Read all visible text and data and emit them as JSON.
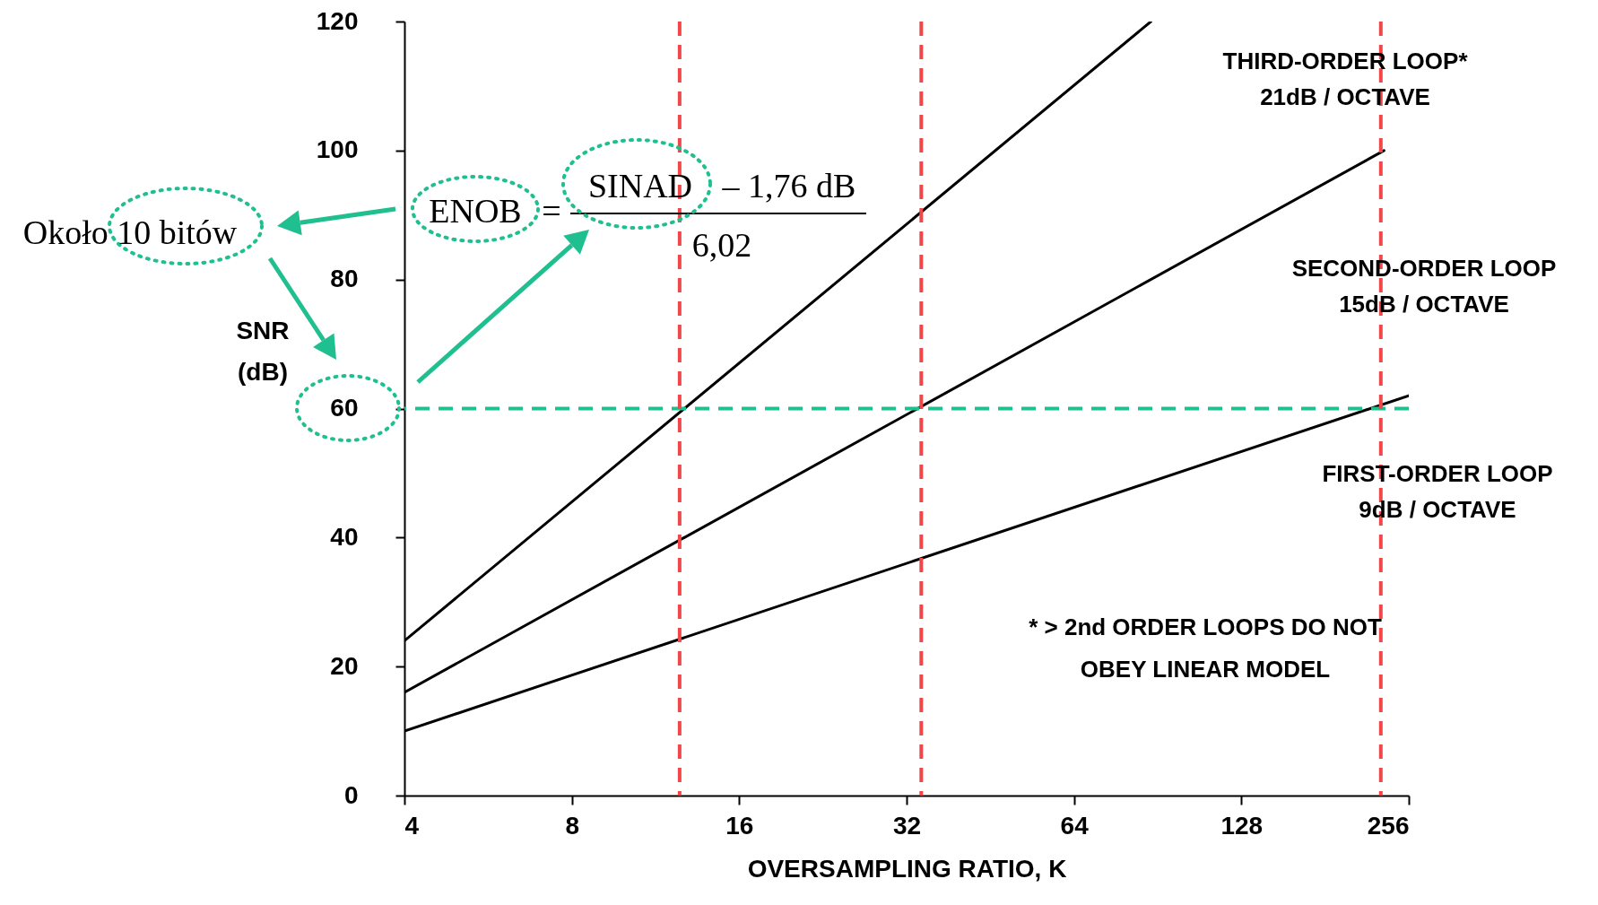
{
  "chart_data": {
    "type": "line",
    "xlabel": "OVERSAMPLING RATIO, K",
    "ylabel": "SNR (dB)",
    "log": "x",
    "xlim": [
      4,
      256
    ],
    "xticks": [
      4,
      8,
      16,
      32,
      64,
      128,
      256
    ],
    "ylim": [
      0,
      120
    ],
    "yticks": [
      0,
      20,
      40,
      60,
      80,
      100,
      120
    ],
    "grid": false,
    "line_style": "solid",
    "series": [
      {
        "color": "#000000",
        "x": [
          4,
          88
        ],
        "values": [
          24,
          120
        ]
      },
      {
        "color": "#000000",
        "x": [
          4,
          231
        ],
        "values": [
          16,
          100
        ]
      },
      {
        "color": "#000000",
        "x": [
          4,
          256
        ],
        "values": [
          10,
          62
        ]
      }
    ],
    "ref_lines": [
      {
        "axis": "y",
        "value": 60,
        "color": "#1fbf8f",
        "line_style": "dashed"
      },
      {
        "axis": "x",
        "value": 12.5,
        "color": "#f04848",
        "line_style": "dashed"
      },
      {
        "axis": "x",
        "value": 34,
        "color": "#f04848",
        "line_style": "dashed"
      },
      {
        "axis": "x",
        "value": 228,
        "color": "#f04848",
        "line_style": "dashed"
      }
    ],
    "annotations": [
      "THIRD-ORDER LOOP*",
      "21dB / OCTAVE",
      "SECOND-ORDER LOOP",
      "15dB / OCTAVE",
      "FIRST-ORDER LOOP",
      "9dB / OCTAVE",
      "* > 2nd ORDER LOOPS DO NOT",
      "OBEY LINEAR MODEL",
      "Około 10 bitów",
      "ENOB",
      "=",
      "SINAD",
      "– 1,76 dB",
      "6,02"
    ]
  }
}
